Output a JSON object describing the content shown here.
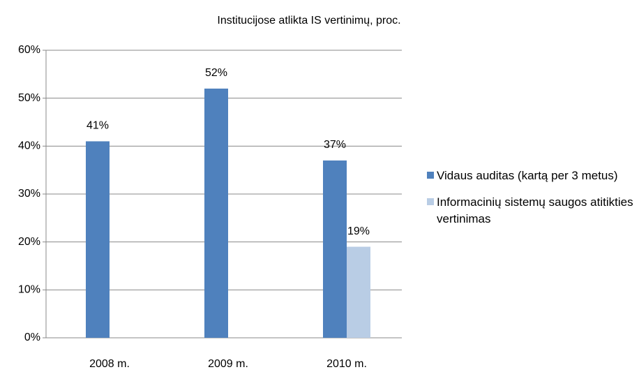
{
  "chart_data": {
    "type": "bar",
    "title": "Institucijose atlikta IS vertinimų, proc.",
    "categories": [
      "2008 m.",
      "2009 m.",
      "2010 m."
    ],
    "series": [
      {
        "name": "Vidaus auditas (kartą per 3 metus)",
        "color": "#4f81bd",
        "values": [
          41,
          52,
          37
        ],
        "value_labels": [
          "41%",
          "52%",
          "37%"
        ]
      },
      {
        "name": "Informacinių sistemų saugos atitikties vertinimas",
        "color": "#b9cde5",
        "values": [
          null,
          null,
          19
        ],
        "value_labels": [
          null,
          null,
          "19%"
        ]
      }
    ],
    "ylim": [
      0,
      60
    ],
    "yticks": [
      {
        "value": 0,
        "label": "0%"
      },
      {
        "value": 10,
        "label": "10%"
      },
      {
        "value": 20,
        "label": "20%"
      },
      {
        "value": 30,
        "label": "30%"
      },
      {
        "value": 40,
        "label": "40%"
      },
      {
        "value": 50,
        "label": "50%"
      },
      {
        "value": 60,
        "label": "60%"
      }
    ],
    "grid": true,
    "legend": "right"
  }
}
